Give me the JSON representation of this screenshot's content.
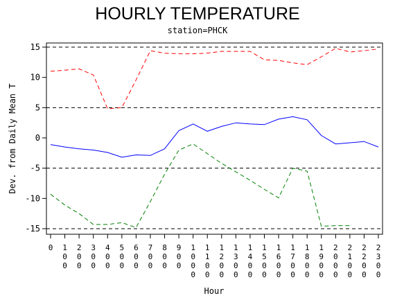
{
  "chart_data": {
    "type": "line",
    "title": "HOURLY TEMPERATURE",
    "subtitle": "station=PHCK",
    "xlabel": "Hour",
    "ylabel": "Dev. from Daily Mean T",
    "ylim": [
      -15.5,
      15.5
    ],
    "yticks": [
      -15,
      -10,
      -5,
      0,
      5,
      10,
      15
    ],
    "yticklabels": [
      "-15",
      "-10",
      "-5",
      "0",
      "5",
      "10",
      "15"
    ],
    "reference_lines": [
      -15,
      -5,
      5,
      15
    ],
    "x": [
      0,
      100,
      200,
      300,
      400,
      500,
      600,
      700,
      800,
      900,
      1000,
      1100,
      1200,
      1300,
      1400,
      1500,
      1600,
      1700,
      1800,
      1900,
      2000,
      2100,
      2200,
      2300
    ],
    "xticklabels": [
      "0",
      "100",
      "200",
      "300",
      "400",
      "500",
      "600",
      "700",
      "800",
      "900",
      "1000",
      "1100",
      "1200",
      "1300",
      "1400",
      "1500",
      "1600",
      "1700",
      "1800",
      "1900",
      "2000",
      "2100",
      "2200",
      "2300"
    ],
    "series": [
      {
        "color": "#ff0000",
        "dash": "dashed",
        "values": [
          11.0,
          11.2,
          11.4,
          10.4,
          4.8,
          5.0,
          9.6,
          14.4,
          14.0,
          13.9,
          13.9,
          14.0,
          14.3,
          14.3,
          14.3,
          12.9,
          12.8,
          12.4,
          12.1,
          13.4,
          14.8,
          14.2,
          14.4,
          14.7
        ]
      },
      {
        "color": "#0000ff",
        "dash": "solid",
        "values": [
          -1.1,
          -1.5,
          -1.8,
          -2.0,
          -2.4,
          -3.2,
          -2.8,
          -2.9,
          -1.8,
          1.2,
          2.3,
          1.1,
          1.9,
          2.5,
          2.3,
          2.2,
          3.1,
          3.5,
          3.0,
          0.4,
          -1.0,
          -0.8,
          -0.6,
          -1.5
        ]
      },
      {
        "color": "#008000",
        "dash": "dashed",
        "values": [
          -9.3,
          -11.1,
          -12.5,
          -14.3,
          -14.3,
          -14.0,
          -14.8,
          -10.5,
          -6.0,
          -2.0,
          -1.0,
          -2.6,
          -4.2,
          -5.6,
          -7.0,
          -8.5,
          -9.9,
          -5.0,
          -5.5,
          -14.6,
          -14.5,
          -14.5,
          null,
          null
        ]
      }
    ],
    "grid": false,
    "legend": "none"
  }
}
